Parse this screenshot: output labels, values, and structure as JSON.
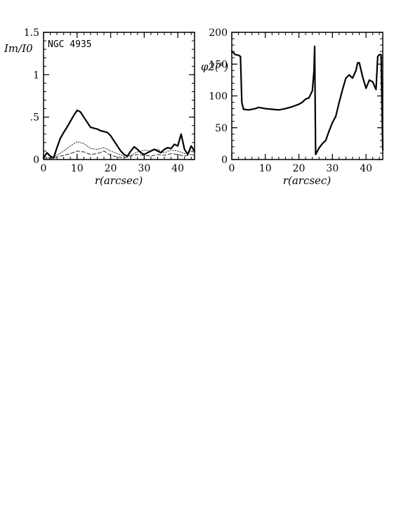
{
  "chart_data": [
    {
      "type": "line",
      "title": "",
      "annotation": "NGC 4935",
      "xlabel": "r(arcsec)",
      "ylabel": "Im/I0",
      "xlim": [
        0,
        45
      ],
      "ylim": [
        0,
        1.5
      ],
      "x_ticks": [
        0,
        10,
        20,
        30,
        40
      ],
      "x_tick_labels": [
        "0",
        "10",
        "20",
        "30",
        "40"
      ],
      "y_ticks": [
        0,
        0.5,
        1,
        1.5
      ],
      "y_tick_labels": [
        "0",
        ".5",
        "1",
        "1.5"
      ],
      "series": [
        {
          "style": "solid-thick",
          "x": [
            0,
            1,
            2,
            3,
            4,
            5,
            6,
            7,
            8,
            9,
            10,
            11,
            12,
            13,
            14,
            15,
            16,
            17,
            18,
            19,
            20,
            21,
            22,
            23,
            24,
            25,
            26,
            27,
            28,
            29,
            30,
            31,
            32,
            33,
            34,
            35,
            36,
            37,
            38,
            39,
            40,
            41,
            42,
            43,
            44,
            45
          ],
          "y": [
            0.02,
            0.08,
            0.04,
            0.02,
            0.14,
            0.25,
            0.32,
            0.38,
            0.45,
            0.52,
            0.58,
            0.56,
            0.5,
            0.44,
            0.38,
            0.37,
            0.36,
            0.34,
            0.33,
            0.32,
            0.28,
            0.22,
            0.16,
            0.1,
            0.06,
            0.04,
            0.1,
            0.15,
            0.12,
            0.08,
            0.06,
            0.08,
            0.1,
            0.12,
            0.1,
            0.08,
            0.12,
            0.14,
            0.13,
            0.18,
            0.16,
            0.3,
            0.12,
            0.06,
            0.16,
            0.1
          ]
        },
        {
          "style": "dotted",
          "x": [
            0,
            2,
            4,
            6,
            8,
            10,
            12,
            14,
            16,
            18,
            20,
            22,
            24,
            26,
            28,
            30,
            32,
            34,
            36,
            38,
            40,
            42,
            44,
            45
          ],
          "y": [
            0.03,
            0.02,
            0.05,
            0.1,
            0.16,
            0.21,
            0.19,
            0.13,
            0.12,
            0.14,
            0.1,
            0.07,
            0.04,
            0.05,
            0.09,
            0.11,
            0.1,
            0.12,
            0.08,
            0.11,
            0.1,
            0.07,
            0.1,
            0.08
          ]
        },
        {
          "style": "dashed",
          "x": [
            0,
            2,
            4,
            6,
            8,
            10,
            12,
            14,
            16,
            18,
            20,
            22,
            24,
            26,
            28,
            30,
            32,
            34,
            36,
            38,
            40,
            42,
            44,
            45
          ],
          "y": [
            0.02,
            0.01,
            0.03,
            0.05,
            0.07,
            0.1,
            0.09,
            0.06,
            0.07,
            0.1,
            0.05,
            0.03,
            0.02,
            0.04,
            0.06,
            0.05,
            0.04,
            0.06,
            0.05,
            0.07,
            0.06,
            0.04,
            0.06,
            0.05
          ]
        }
      ]
    },
    {
      "type": "line",
      "title": "",
      "xlabel": "r(arcsec)",
      "ylabel": "φ2(°)",
      "xlim": [
        0,
        45
      ],
      "ylim": [
        0,
        200
      ],
      "x_ticks": [
        0,
        10,
        20,
        30,
        40
      ],
      "x_tick_labels": [
        "0",
        "10",
        "20",
        "30",
        "40"
      ],
      "y_ticks": [
        0,
        50,
        100,
        150,
        200
      ],
      "y_tick_labels": [
        "0",
        "50",
        "100",
        "150",
        "200"
      ],
      "series": [
        {
          "style": "solid-thick",
          "x": [
            0,
            0.5,
            1,
            2,
            2.6,
            3,
            3.5,
            5,
            7,
            8,
            10,
            12,
            14,
            16,
            18,
            20,
            21,
            22,
            23,
            24,
            24.5,
            24.7,
            25,
            26,
            27,
            28,
            29,
            30,
            31,
            32,
            33,
            34,
            35,
            36,
            37,
            37.5,
            38,
            39,
            40,
            41,
            42,
            43,
            43.5,
            44,
            44.5,
            45
          ],
          "y": [
            170,
            168,
            165,
            164,
            162,
            90,
            79,
            78,
            80,
            82,
            80,
            79,
            78,
            80,
            83,
            87,
            90,
            95,
            97,
            108,
            140,
            178,
            8,
            18,
            25,
            30,
            45,
            58,
            68,
            90,
            110,
            128,
            133,
            128,
            140,
            152,
            152,
            130,
            112,
            125,
            122,
            110,
            162,
            165,
            165,
            15
          ]
        }
      ]
    }
  ]
}
